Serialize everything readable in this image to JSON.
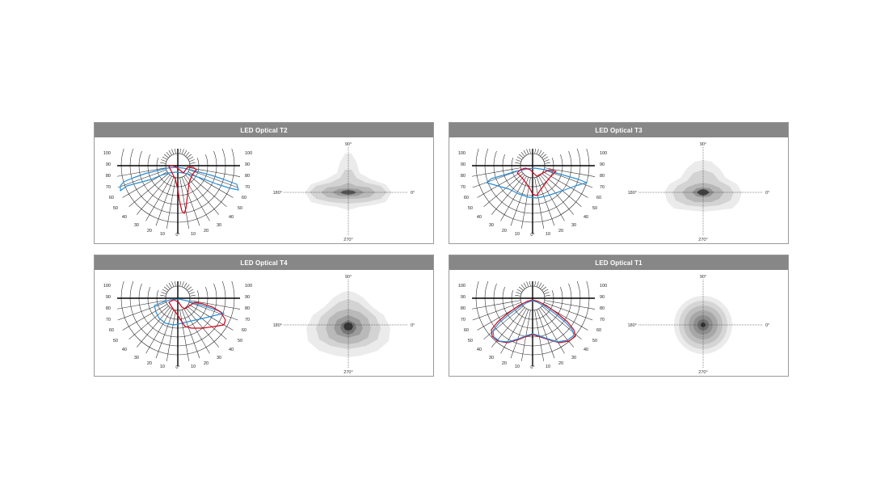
{
  "panels": [
    {
      "id": "t2",
      "title": "LED Optical T2",
      "polar_tick_labels": [
        "100",
        "90",
        "80",
        "70",
        "60",
        "50",
        "40",
        "30",
        "20",
        "10",
        "0°",
        "10",
        "20",
        "30",
        "40",
        "50",
        "60",
        "70",
        "80",
        "90",
        "100"
      ],
      "iso_labels": {
        "top": "90°",
        "bottom": "270°",
        "left": "180°",
        "right": "0°"
      },
      "curves": [
        "red",
        "blue"
      ]
    },
    {
      "id": "t3",
      "title": "LED Optical T3",
      "polar_tick_labels": [
        "100",
        "90",
        "80",
        "70",
        "60",
        "50",
        "40",
        "30",
        "20",
        "10",
        "0°",
        "10",
        "20",
        "30",
        "40",
        "50",
        "60",
        "70",
        "80",
        "90",
        "100"
      ],
      "iso_labels": {
        "top": "90°",
        "bottom": "270°",
        "left": "180°",
        "right": "0°"
      },
      "curves": [
        "red",
        "blue"
      ]
    },
    {
      "id": "t4",
      "title": "LED Optical T4",
      "polar_tick_labels": [
        "100",
        "90",
        "80",
        "70",
        "60",
        "50",
        "40",
        "30",
        "20",
        "10",
        "0°",
        "10",
        "20",
        "30",
        "40",
        "50",
        "60",
        "70",
        "80",
        "90",
        "100"
      ],
      "iso_labels": {
        "top": "90°",
        "bottom": "270°",
        "left": "180°",
        "right": "0°"
      },
      "curves": [
        "red",
        "blue"
      ]
    },
    {
      "id": "t1",
      "title": "LED Optical T1",
      "polar_tick_labels": [
        "100",
        "90",
        "80",
        "70",
        "60",
        "50",
        "40",
        "30",
        "20",
        "10",
        "0°",
        "10",
        "20",
        "30",
        "40",
        "50",
        "60",
        "70",
        "80",
        "90",
        "100"
      ],
      "iso_labels": {
        "top": "90°",
        "bottom": "270°",
        "left": "180°",
        "right": "0°"
      },
      "curves": [
        "red",
        "blue"
      ]
    }
  ],
  "colors": {
    "header_bg": "#878787",
    "red_curve": "#d0021b",
    "blue_curve": "#2a8fd6"
  }
}
